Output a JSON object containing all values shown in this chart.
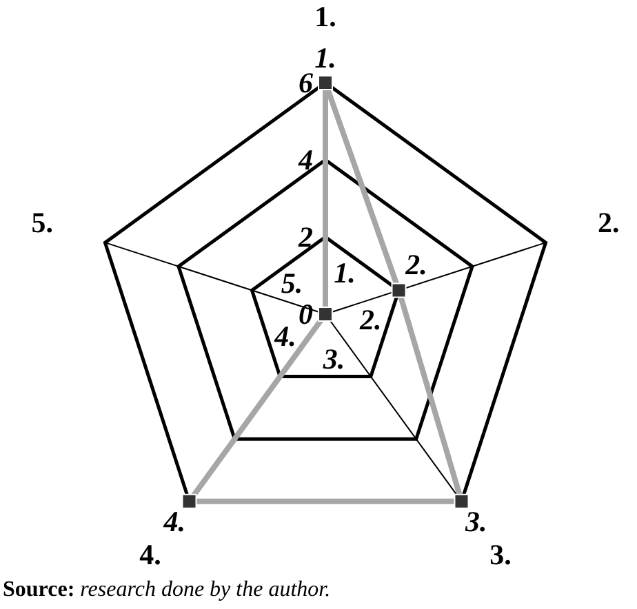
{
  "chart_data": {
    "type": "radar",
    "categories": [
      "1.",
      "2.",
      "3.",
      "4.",
      "5."
    ],
    "series": [
      {
        "color": "#a6a6a6",
        "values": [
          6,
          2,
          6,
          6,
          0
        ]
      }
    ],
    "ylim": [
      0,
      6
    ],
    "yticks": [
      0,
      2,
      4,
      6
    ],
    "grid": true,
    "marker": "square",
    "line_style": "solid",
    "annotations": [
      {
        "text": "1.",
        "x": "1."
      },
      {
        "text": "2.",
        "x": "2."
      },
      {
        "text": "3.",
        "x": "3."
      },
      {
        "text": "4.",
        "x": "4."
      },
      {
        "text": "1.",
        "x": "1."
      },
      {
        "text": "2.",
        "x": "2."
      },
      {
        "text": "3.",
        "x": "3."
      },
      {
        "text": "4.",
        "x": "4."
      },
      {
        "text": "5.",
        "x": "5."
      },
      "Source: research done by the author."
    ]
  }
}
